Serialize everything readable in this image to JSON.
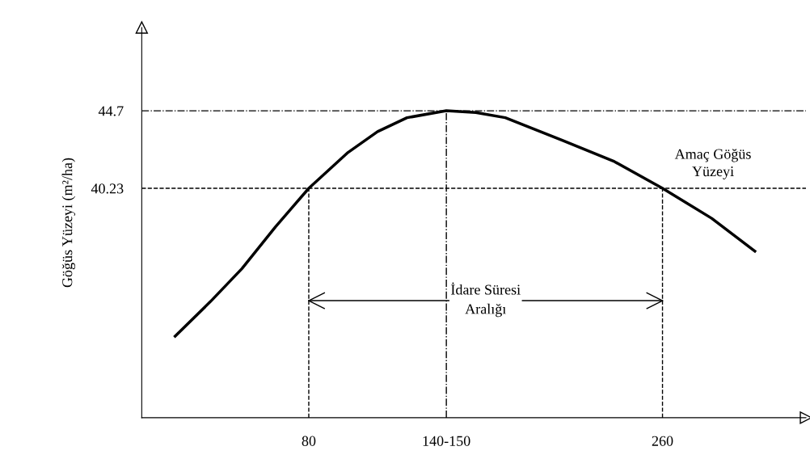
{
  "chart_data": {
    "type": "line",
    "ylabel": "Göğüs Yüzeyi (m²/ha)",
    "xlim": [
      -5,
      333
    ],
    "ylim": [
      27,
      49.5
    ],
    "xticks": [
      80,
      {
        "value": 150,
        "label": "140-150"
      },
      260
    ],
    "yticks": [
      40.23,
      44.7
    ],
    "series": [
      {
        "color": "#000000",
        "x": [
          12,
          30,
          46,
          63,
          80,
          100,
          115,
          130,
          150,
          165,
          180,
          209,
          235,
          260,
          285,
          307
        ],
        "values": [
          31.7,
          33.7,
          35.6,
          38.0,
          40.23,
          42.3,
          43.5,
          44.3,
          44.7,
          44.6,
          44.3,
          43.0,
          41.8,
          40.23,
          38.5,
          36.6
        ]
      },
      {
        "type": "line",
        "color": "#000000",
        "x": [
          80,
          260
        ],
        "values": [
          33.75,
          33.75
        ]
      }
    ],
    "ref_lines": [
      {
        "axis": "y",
        "value": 44.7,
        "line_style": "dashdot"
      },
      {
        "axis": "y",
        "value": 40.23,
        "line_style": "dashed"
      },
      {
        "axis": "x",
        "value": 80,
        "line_style": "dashed"
      },
      {
        "axis": "x",
        "value": 150,
        "line_style": "dashdot"
      },
      {
        "axis": "x",
        "value": 260,
        "line_style": "dashed"
      }
    ],
    "annotations": [
      {
        "text": "Amaç Göğüs\nYüzeyi",
        "x": 260,
        "y": 40.23
      },
      {
        "text": "İdare Süresi\nAralığı",
        "x": 170,
        "y": 33.75
      }
    ],
    "grid": false,
    "marker": "none",
    "line_style": "solid"
  }
}
